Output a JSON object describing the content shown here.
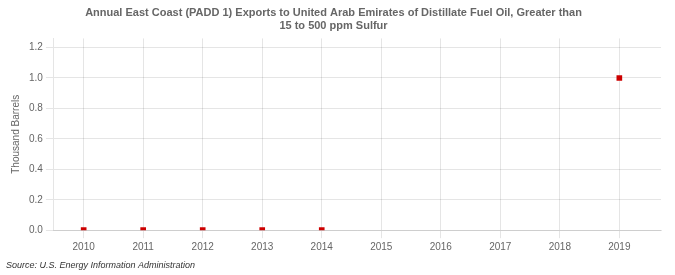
{
  "chart_data": {
    "type": "scatter",
    "title": "Annual East Coast (PADD 1) Exports to United Arab Emirates of Distillate Fuel Oil, Greater than\n15 to 500 ppm Sulfur",
    "y_label": "Thousand Barrels",
    "source": "Source: U.S. Energy Information Administration",
    "x": [
      2010,
      2011,
      2012,
      2013,
      2014,
      2015,
      2016,
      2017,
      2018,
      2019
    ],
    "values": [
      0,
      0,
      0,
      0,
      0,
      null,
      null,
      null,
      null,
      1.0
    ],
    "color": "#cc0000",
    "marker": "square",
    "xlim": [
      2009.5,
      2019.7
    ],
    "ylim": [
      0.0,
      1.26
    ],
    "xticks": [
      2010,
      2011,
      2012,
      2013,
      2014,
      2015,
      2016,
      2017,
      2018,
      2019
    ],
    "yticks": [
      {
        "value": 0.0,
        "label": "0.0"
      },
      0.2,
      0.4,
      0.6,
      0.8,
      {
        "value": 1.0,
        "label": "1.0"
      },
      1.2
    ],
    "grid": true,
    "legend": false
  }
}
